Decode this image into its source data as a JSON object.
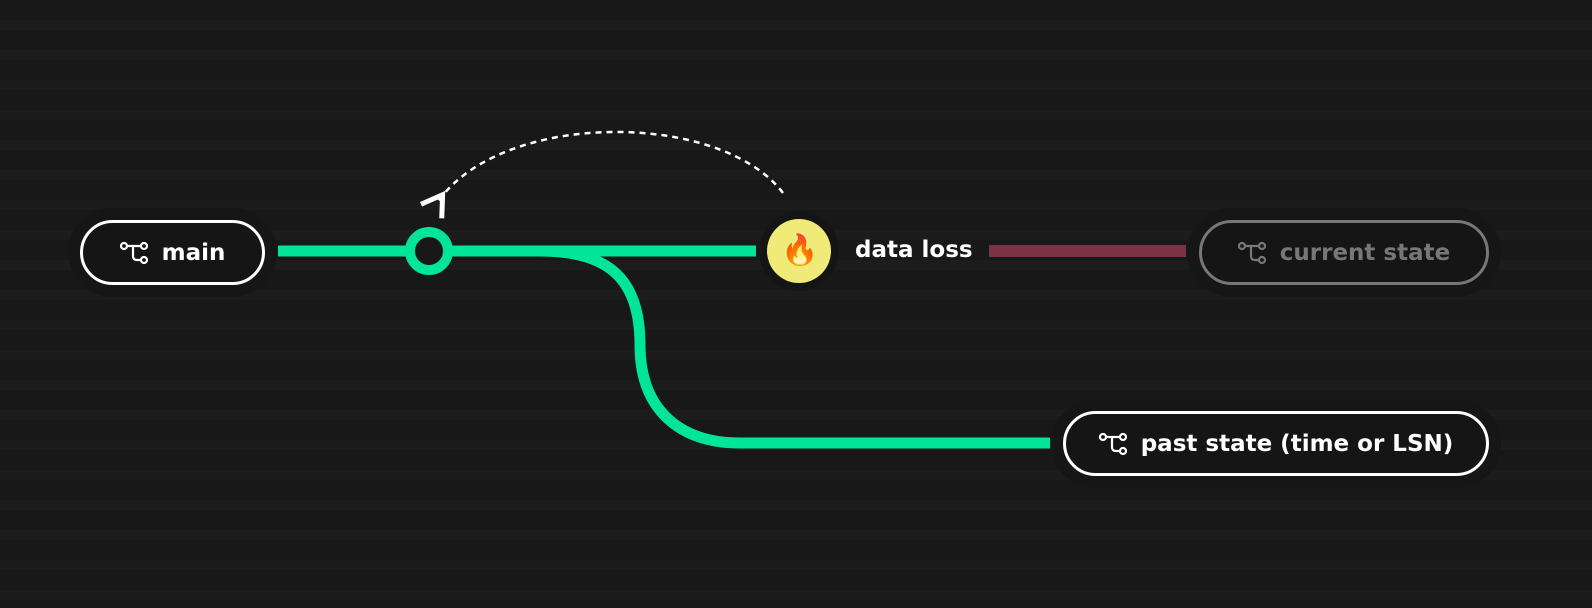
{
  "nodes": {
    "main": {
      "label": "main",
      "icon": "branch-icon"
    },
    "data_loss": {
      "label": "data loss",
      "icon": "fire-icon",
      "emoji": "🔥"
    },
    "current_state": {
      "label": "current state",
      "icon": "branch-icon"
    },
    "past_state": {
      "label": "past state (time or LSN)",
      "icon": "branch-icon"
    }
  },
  "colors": {
    "background": "#181818",
    "branch_line": "#00e599",
    "lost_line": "#7a3344",
    "fire_circle": "#f0ea78",
    "dim": "#777777"
  }
}
